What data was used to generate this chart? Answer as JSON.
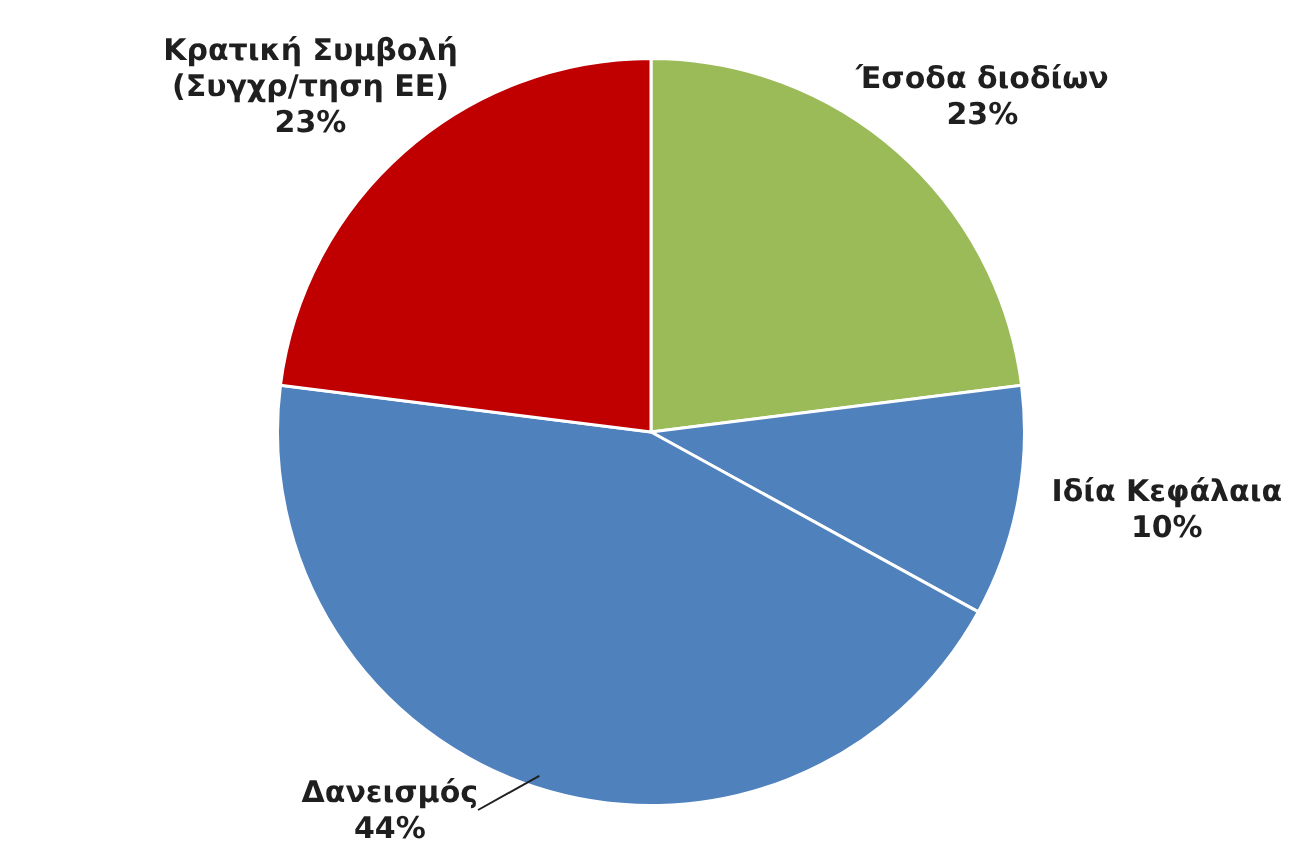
{
  "chart_data": {
    "type": "pie",
    "categories": [
      "Έσοδα διοδίων",
      "Ιδία Κεφάλαια",
      "Δανεισμός",
      "Κρατική Συμβολή (Συγχρ/τηση ΕΕ)"
    ],
    "values": [
      23,
      10,
      44,
      23
    ],
    "colors": [
      "#9bbb59",
      "#4f81bd",
      "#4f81bd",
      "#c00000"
    ],
    "value_labels": [
      "23%",
      "10%",
      "44%",
      "23%"
    ]
  }
}
